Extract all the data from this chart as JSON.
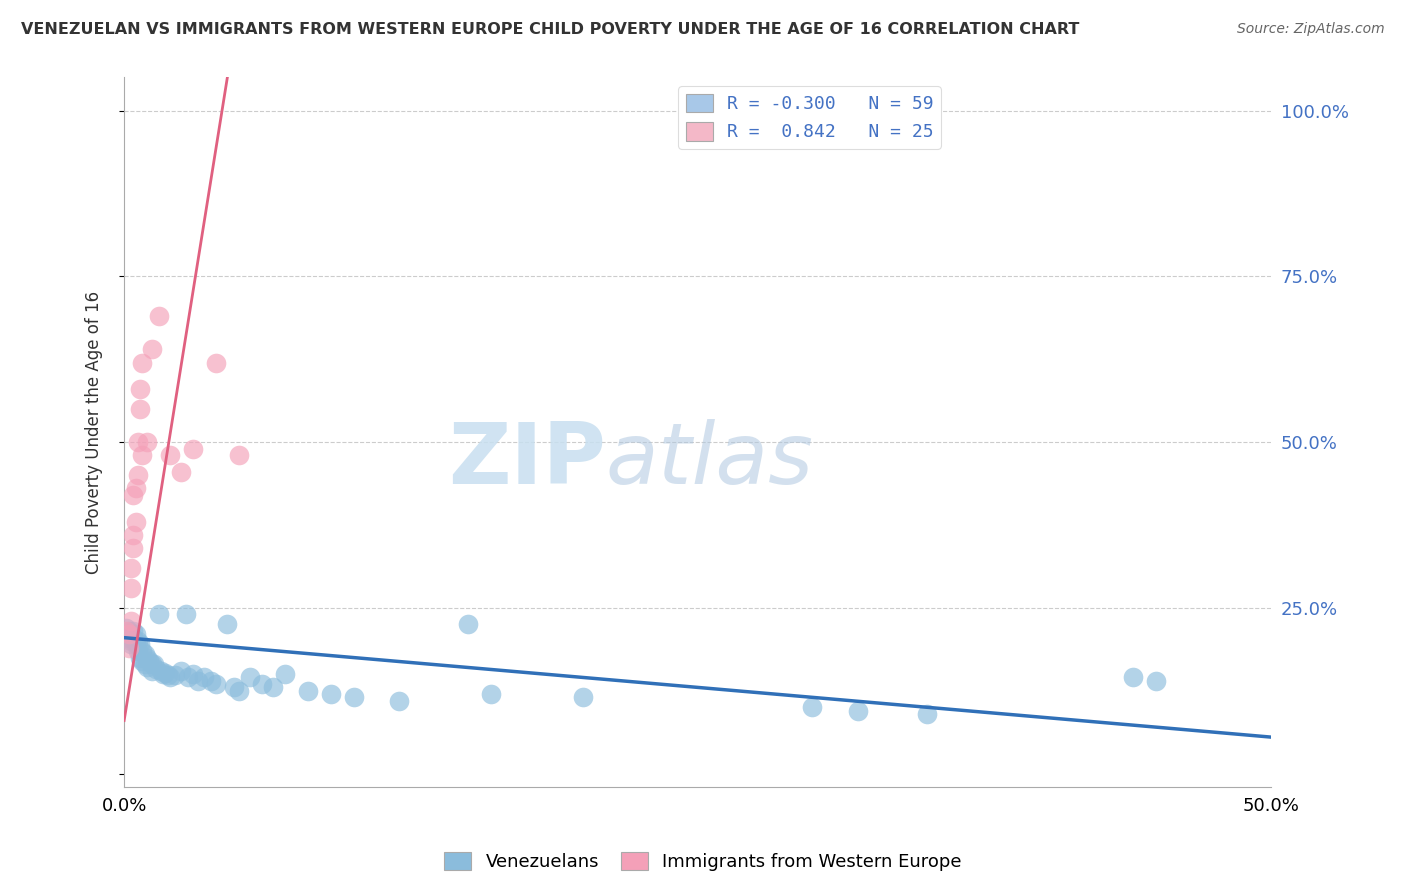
{
  "title": "VENEZUELAN VS IMMIGRANTS FROM WESTERN EUROPE CHILD POVERTY UNDER THE AGE OF 16 CORRELATION CHART",
  "source": "Source: ZipAtlas.com",
  "ylabel": "Child Poverty Under the Age of 16",
  "yticks": [
    0.0,
    0.25,
    0.5,
    0.75,
    1.0
  ],
  "ytick_labels": [
    "",
    "25.0%",
    "50.0%",
    "75.0%",
    "100.0%"
  ],
  "xmin": 0.0,
  "xmax": 0.5,
  "ymin": -0.02,
  "ymax": 1.05,
  "legend_entries": [
    {
      "color": "#a8c8e8",
      "label": "Venezuelans",
      "R": -0.3,
      "N": 59
    },
    {
      "color": "#f4b8c8",
      "label": "Immigrants from Western Europe",
      "R": 0.842,
      "N": 25
    }
  ],
  "blue_color": "#8bbcdc",
  "pink_color": "#f4a0b8",
  "blue_line_color": "#3070b8",
  "pink_line_color": "#e06080",
  "watermark_zip": "ZIP",
  "watermark_atlas": "atlas",
  "watermark_color": "#c8dff0",
  "blue_scatter": [
    [
      0.001,
      0.22
    ],
    [
      0.002,
      0.215
    ],
    [
      0.002,
      0.205
    ],
    [
      0.003,
      0.21
    ],
    [
      0.003,
      0.2
    ],
    [
      0.003,
      0.195
    ],
    [
      0.004,
      0.215
    ],
    [
      0.004,
      0.205
    ],
    [
      0.005,
      0.21
    ],
    [
      0.005,
      0.195
    ],
    [
      0.006,
      0.2
    ],
    [
      0.006,
      0.185
    ],
    [
      0.007,
      0.195
    ],
    [
      0.007,
      0.175
    ],
    [
      0.008,
      0.185
    ],
    [
      0.008,
      0.17
    ],
    [
      0.009,
      0.18
    ],
    [
      0.009,
      0.165
    ],
    [
      0.01,
      0.175
    ],
    [
      0.01,
      0.16
    ],
    [
      0.011,
      0.17
    ],
    [
      0.012,
      0.165
    ],
    [
      0.012,
      0.155
    ],
    [
      0.013,
      0.165
    ],
    [
      0.014,
      0.158
    ],
    [
      0.015,
      0.24
    ],
    [
      0.016,
      0.155
    ],
    [
      0.017,
      0.15
    ],
    [
      0.018,
      0.152
    ],
    [
      0.019,
      0.148
    ],
    [
      0.02,
      0.145
    ],
    [
      0.022,
      0.148
    ],
    [
      0.025,
      0.155
    ],
    [
      0.027,
      0.24
    ],
    [
      0.028,
      0.145
    ],
    [
      0.03,
      0.15
    ],
    [
      0.032,
      0.14
    ],
    [
      0.035,
      0.145
    ],
    [
      0.038,
      0.14
    ],
    [
      0.04,
      0.135
    ],
    [
      0.045,
      0.225
    ],
    [
      0.048,
      0.13
    ],
    [
      0.05,
      0.125
    ],
    [
      0.055,
      0.145
    ],
    [
      0.06,
      0.135
    ],
    [
      0.065,
      0.13
    ],
    [
      0.07,
      0.15
    ],
    [
      0.08,
      0.125
    ],
    [
      0.09,
      0.12
    ],
    [
      0.1,
      0.115
    ],
    [
      0.12,
      0.11
    ],
    [
      0.15,
      0.225
    ],
    [
      0.16,
      0.12
    ],
    [
      0.2,
      0.115
    ],
    [
      0.3,
      0.1
    ],
    [
      0.32,
      0.095
    ],
    [
      0.35,
      0.09
    ],
    [
      0.44,
      0.145
    ],
    [
      0.45,
      0.14
    ]
  ],
  "pink_scatter": [
    [
      0.001,
      0.215
    ],
    [
      0.002,
      0.21
    ],
    [
      0.002,
      0.19
    ],
    [
      0.003,
      0.23
    ],
    [
      0.003,
      0.28
    ],
    [
      0.003,
      0.31
    ],
    [
      0.004,
      0.34
    ],
    [
      0.004,
      0.36
    ],
    [
      0.004,
      0.42
    ],
    [
      0.005,
      0.38
    ],
    [
      0.005,
      0.43
    ],
    [
      0.006,
      0.45
    ],
    [
      0.006,
      0.5
    ],
    [
      0.007,
      0.55
    ],
    [
      0.007,
      0.58
    ],
    [
      0.008,
      0.62
    ],
    [
      0.008,
      0.48
    ],
    [
      0.01,
      0.5
    ],
    [
      0.012,
      0.64
    ],
    [
      0.015,
      0.69
    ],
    [
      0.02,
      0.48
    ],
    [
      0.025,
      0.455
    ],
    [
      0.03,
      0.49
    ],
    [
      0.04,
      0.62
    ],
    [
      0.05,
      0.48
    ]
  ],
  "blue_line_x": [
    0.0,
    0.5
  ],
  "blue_line_y": [
    0.205,
    0.055
  ],
  "pink_line_x": [
    0.0,
    0.045
  ],
  "pink_line_y": [
    0.08,
    1.05
  ]
}
